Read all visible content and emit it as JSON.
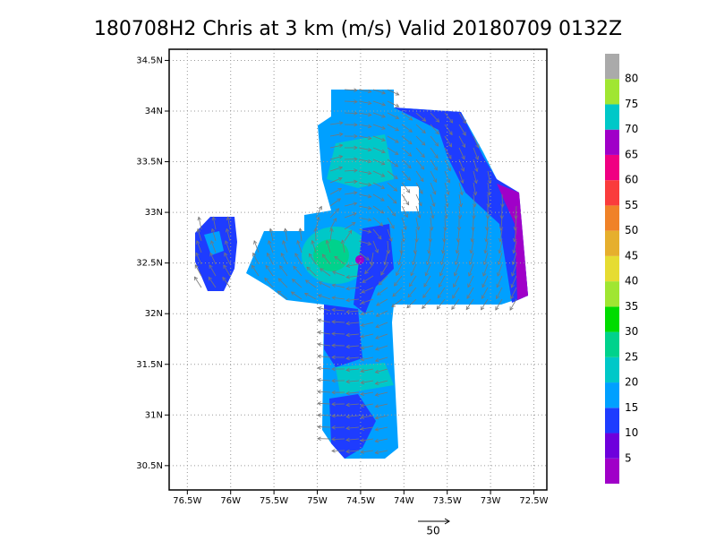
{
  "chart_data": {
    "type": "map",
    "title": "180708H2 Chris at 3 km (m/s) Valid 20180709 0132Z",
    "xlim": [
      -76.71,
      -72.35
    ],
    "ylim": [
      30.26,
      34.61
    ],
    "xticks": [
      {
        "value": -76.5,
        "label": "76.5W"
      },
      {
        "value": -76,
        "label": "76W"
      },
      {
        "value": -75.5,
        "label": "75.5W"
      },
      {
        "value": -75,
        "label": "75W"
      },
      {
        "value": -74.5,
        "label": "74.5W"
      },
      {
        "value": -74,
        "label": "74W"
      },
      {
        "value": -73.5,
        "label": "73.5W"
      },
      {
        "value": -73,
        "label": "73W"
      },
      {
        "value": -72.5,
        "label": "72.5W"
      }
    ],
    "yticks": [
      {
        "value": 30.5,
        "label": "30.5N"
      },
      {
        "value": 31,
        "label": "31N"
      },
      {
        "value": 31.5,
        "label": "31.5N"
      },
      {
        "value": 32,
        "label": "32N"
      },
      {
        "value": 32.5,
        "label": "32.5N"
      },
      {
        "value": 33,
        "label": "33N"
      },
      {
        "value": 33.5,
        "label": "33.5N"
      },
      {
        "value": 34,
        "label": "34N"
      },
      {
        "value": 34.5,
        "label": "34.5N"
      }
    ],
    "grid": true,
    "colorbar": {
      "levels": [
        5,
        10,
        15,
        20,
        25,
        30,
        35,
        40,
        45,
        50,
        55,
        60,
        65,
        70,
        75,
        80
      ],
      "colors": [
        "#a000c8",
        "#6e00dc",
        "#1e3cff",
        "#00a0ff",
        "#00c8c8",
        "#00d28c",
        "#00dc00",
        "#a0e632",
        "#e6dc32",
        "#e6af2d",
        "#f08228",
        "#fa3c3c",
        "#f00082",
        "#a000c8",
        "#00c8c8",
        "#a0e632",
        "#aaaaaa"
      ]
    },
    "reference_vector": {
      "value": 50
    }
  }
}
